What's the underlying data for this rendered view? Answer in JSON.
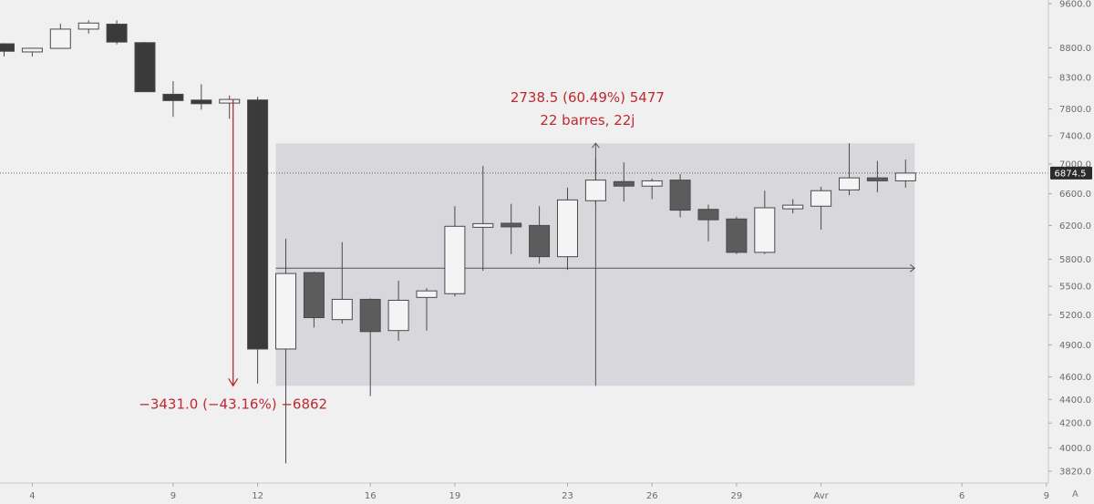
{
  "chart_data": {
    "type": "candlestick",
    "timeframe": "1D",
    "x_ticks": [
      {
        "label": "4",
        "day": 1
      },
      {
        "label": "9",
        "day": 6
      },
      {
        "label": "12",
        "day": 9
      },
      {
        "label": "16",
        "day": 13
      },
      {
        "label": "19",
        "day": 16
      },
      {
        "label": "23",
        "day": 20
      },
      {
        "label": "26",
        "day": 23
      },
      {
        "label": "29",
        "day": 26
      },
      {
        "label": "Avr",
        "day": 29
      },
      {
        "label": "6",
        "day": 34
      },
      {
        "label": "9",
        "day": 37
      }
    ],
    "y_ticks": [
      3820,
      4000,
      4200,
      4400,
      4600,
      4900,
      5200,
      5500,
      5800,
      6200,
      6600,
      7000,
      7400,
      7800,
      8300,
      8800,
      9600
    ],
    "y_tick_labels": [
      "3820.0",
      "4000.0",
      "4200.0",
      "4400.0",
      "4600.0",
      "4900.0",
      "5200.0",
      "5500.0",
      "5800.0",
      "6200.0",
      "6600.0",
      "7000.0",
      "7400.0",
      "7800.0",
      "8300.0",
      "8800.0",
      "9600.0"
    ],
    "scale": "log",
    "candles": [
      {
        "day": 0,
        "o": 8870,
        "h": 8880,
        "l": 8650,
        "c": 8740
      },
      {
        "day": 1,
        "o": 8750,
        "h": 8800,
        "l": 8650,
        "c": 8770
      },
      {
        "day": 2,
        "o": 8790,
        "h": 9230,
        "l": 8790,
        "c": 9130
      },
      {
        "day": 3,
        "o": 9130,
        "h": 9290,
        "l": 9050,
        "c": 9240
      },
      {
        "day": 4,
        "o": 9220,
        "h": 9290,
        "l": 8860,
        "c": 8900
      },
      {
        "day": 5,
        "o": 8890,
        "h": 8900,
        "l": 8080,
        "c": 8070
      },
      {
        "day": 6,
        "o": 8030,
        "h": 8240,
        "l": 7680,
        "c": 7930
      },
      {
        "day": 7,
        "o": 7930,
        "h": 8190,
        "l": 7790,
        "c": 7890
      },
      {
        "day": 8,
        "o": 7900,
        "h": 8010,
        "l": 7650,
        "c": 7940
      },
      {
        "day": 9,
        "o": 7940,
        "h": 7990,
        "l": 4540,
        "c": 4860
      },
      {
        "day": 10,
        "o": 4860,
        "h": 6040,
        "l": 3880,
        "c": 5640
      },
      {
        "day": 11,
        "o": 5650,
        "h": 5660,
        "l": 5070,
        "c": 5170
      },
      {
        "day": 12,
        "o": 5150,
        "h": 6000,
        "l": 5110,
        "c": 5360
      },
      {
        "day": 13,
        "o": 5360,
        "h": 5370,
        "l": 4430,
        "c": 5030
      },
      {
        "day": 14,
        "o": 5040,
        "h": 5560,
        "l": 4940,
        "c": 5350
      },
      {
        "day": 15,
        "o": 5380,
        "h": 5480,
        "l": 5040,
        "c": 5450
      },
      {
        "day": 16,
        "o": 5420,
        "h": 6440,
        "l": 5390,
        "c": 6190
      },
      {
        "day": 17,
        "o": 6190,
        "h": 6970,
        "l": 5670,
        "c": 6210
      },
      {
        "day": 18,
        "o": 6210,
        "h": 6470,
        "l": 5860,
        "c": 6200
      },
      {
        "day": 19,
        "o": 6200,
        "h": 6440,
        "l": 5750,
        "c": 5830
      },
      {
        "day": 20,
        "o": 5830,
        "h": 6680,
        "l": 5680,
        "c": 6520
      },
      {
        "day": 21,
        "o": 6510,
        "h": 7080,
        "l": 6460,
        "c": 6780
      },
      {
        "day": 22,
        "o": 6760,
        "h": 7020,
        "l": 6500,
        "c": 6700
      },
      {
        "day": 23,
        "o": 6700,
        "h": 6800,
        "l": 6530,
        "c": 6770
      },
      {
        "day": 24,
        "o": 6780,
        "h": 6860,
        "l": 6300,
        "c": 6390
      },
      {
        "day": 25,
        "o": 6400,
        "h": 6460,
        "l": 6010,
        "c": 6270
      },
      {
        "day": 26,
        "o": 6280,
        "h": 6310,
        "l": 5860,
        "c": 5880
      },
      {
        "day": 27,
        "o": 5880,
        "h": 6640,
        "l": 5860,
        "c": 6420
      },
      {
        "day": 28,
        "o": 6420,
        "h": 6530,
        "l": 6350,
        "c": 6440
      },
      {
        "day": 29,
        "o": 6440,
        "h": 6690,
        "l": 6150,
        "c": 6640
      },
      {
        "day": 30,
        "o": 6650,
        "h": 7290,
        "l": 6580,
        "c": 6810
      },
      {
        "day": 31,
        "o": 6810,
        "h": 7040,
        "l": 6620,
        "c": 6770
      },
      {
        "day": 32,
        "o": 6770,
        "h": 7060,
        "l": 6680,
        "c": 6874.5
      }
    ],
    "current_price": 6874.5,
    "current_price_label": "6874.5",
    "drop_measure": {
      "from_day": 8,
      "from_price": 7950,
      "to_day": 8,
      "to_price": 4520,
      "line1": "−3431.0 (−43.16%) −6862"
    },
    "rise_measure": {
      "from_day": 10,
      "to_day": 32,
      "low": 4520,
      "high": 7290,
      "base_price": 5700,
      "line1": "2738.5 (60.49%) 5477",
      "line2": "22 barres, 22j"
    },
    "colors": {
      "background": "#f0f0f1",
      "candle_up_fill": "#f4f4f4",
      "candle_up_border": "#4a4a4a",
      "candle_down_fill": "#5c5c5c",
      "candle_down_fill_dark": "#3a3a3a",
      "measure_red": "#c0282f",
      "range_box": "#d8d8dc",
      "price_label_bg": "#2b2b2b"
    },
    "scale_button": "A"
  }
}
